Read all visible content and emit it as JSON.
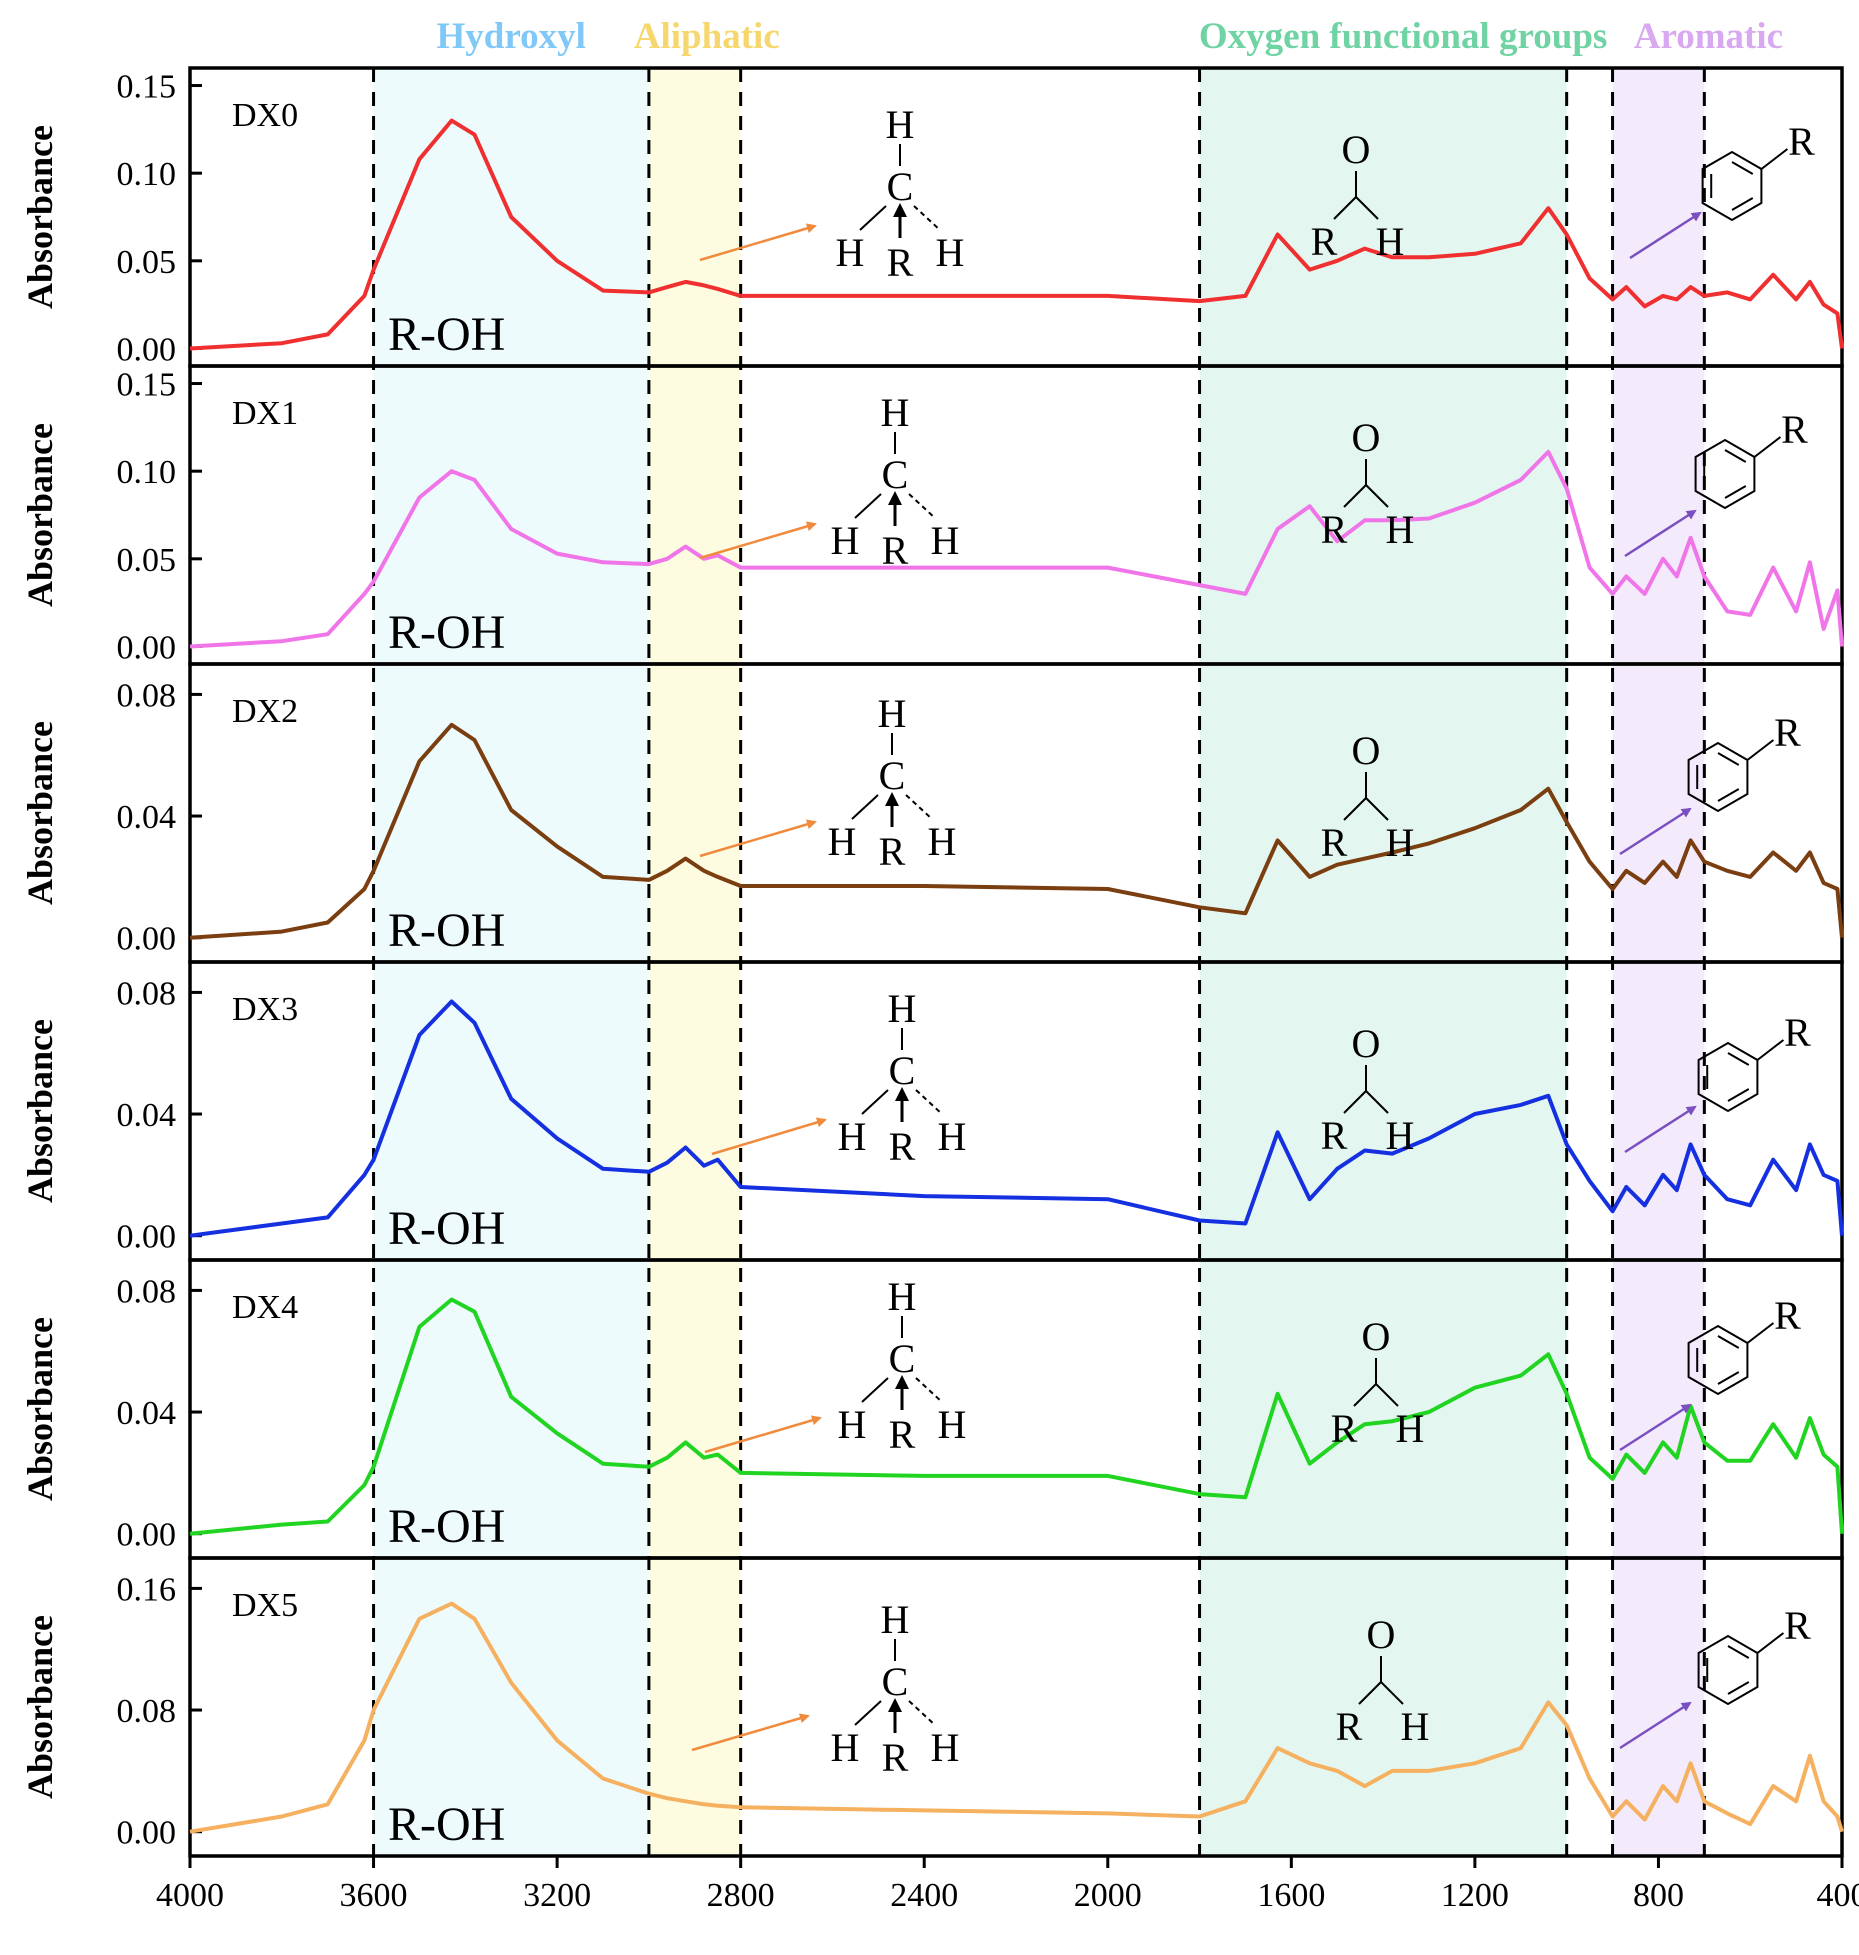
{
  "chart_data": {
    "type": "line",
    "xlim": [
      4000,
      400
    ],
    "x_ticks": [
      "4000",
      "3600",
      "3200",
      "2800",
      "2400",
      "2000",
      "1600",
      "1200",
      "800",
      "400"
    ],
    "x_tick_values": [
      4000,
      3600,
      3200,
      2800,
      2400,
      2000,
      1600,
      1200,
      800,
      400
    ],
    "ylabel": "Absorbance",
    "band_labels": [
      {
        "text": "Hydroxyl",
        "color": "#7fc8f8"
      },
      {
        "text": "Aliphatic",
        "color": "#f5d76e"
      },
      {
        "text": "Oxygen functional groups",
        "color": "#6fd3a3"
      },
      {
        "text": "Aromatic",
        "color": "#d8a8f0"
      }
    ],
    "bands": [
      {
        "from": 3600,
        "to": 3000,
        "color": "#eefbfd"
      },
      {
        "from": 3000,
        "to": 2800,
        "color": "#fdfbe0"
      },
      {
        "from": 1800,
        "to": 1000,
        "color": "#e3f7f0"
      },
      {
        "from": 900,
        "to": 700,
        "color": "#f3eafc"
      }
    ],
    "dashed_lines": [
      3600,
      3000,
      2800,
      1800,
      1000,
      900,
      700
    ],
    "annotation_oh": "R-OH",
    "ch3_atoms": {
      "top": "H",
      "center": "C",
      "left": "H",
      "right": "H",
      "bottom": "R"
    },
    "aldehyde_atoms": {
      "top": "O",
      "left": "R",
      "right": "H"
    },
    "aromatic_substituent": "R",
    "colors": {
      "arrow_aliphatic": "#f08a3c",
      "arrow_aromatic": "#7a4fc0"
    },
    "x": [
      4000,
      3800,
      3700,
      3620,
      3600,
      3500,
      3430,
      3380,
      3300,
      3200,
      3100,
      3000,
      2960,
      2920,
      2880,
      2850,
      2800,
      2400,
      2000,
      1800,
      1700,
      1630,
      1560,
      1500,
      1440,
      1380,
      1300,
      1200,
      1100,
      1040,
      1000,
      950,
      900,
      870,
      830,
      790,
      760,
      730,
      700,
      650,
      600,
      550,
      500,
      470,
      440,
      410,
      400
    ],
    "panels": [
      {
        "name": "DX0",
        "color": "#f03030",
        "ylim": [
          -0.01,
          0.16
        ],
        "yticks": [
          "0.15",
          "0.10",
          "0.05",
          "0.00"
        ],
        "ytick_values": [
          0.15,
          0.1,
          0.05,
          0.0
        ],
        "values": [
          0.0,
          0.003,
          0.008,
          0.03,
          0.045,
          0.108,
          0.13,
          0.122,
          0.075,
          0.05,
          0.033,
          0.032,
          0.035,
          0.038,
          0.036,
          0.034,
          0.03,
          0.03,
          0.03,
          0.027,
          0.03,
          0.065,
          0.045,
          0.05,
          0.057,
          0.052,
          0.052,
          0.054,
          0.06,
          0.08,
          0.065,
          0.04,
          0.028,
          0.035,
          0.024,
          0.03,
          0.028,
          0.035,
          0.03,
          0.032,
          0.028,
          0.042,
          0.028,
          0.038,
          0.025,
          0.02,
          0.0
        ]
      },
      {
        "name": "DX1",
        "color": "#f075e8",
        "ylim": [
          -0.01,
          0.16
        ],
        "yticks": [
          "0.15",
          "0.10",
          "0.05",
          "0.00"
        ],
        "ytick_values": [
          0.15,
          0.1,
          0.05,
          0.0
        ],
        "values": [
          0.0,
          0.003,
          0.007,
          0.03,
          0.037,
          0.085,
          0.1,
          0.095,
          0.067,
          0.053,
          0.048,
          0.047,
          0.05,
          0.057,
          0.05,
          0.052,
          0.045,
          0.045,
          0.045,
          0.035,
          0.03,
          0.067,
          0.08,
          0.06,
          0.072,
          0.072,
          0.073,
          0.082,
          0.095,
          0.111,
          0.09,
          0.045,
          0.03,
          0.04,
          0.03,
          0.05,
          0.04,
          0.062,
          0.04,
          0.02,
          0.018,
          0.045,
          0.02,
          0.048,
          0.01,
          0.032,
          0.0
        ]
      },
      {
        "name": "DX2",
        "color": "#7a3e10",
        "ylim": [
          -0.008,
          0.09
        ],
        "yticks": [
          "0.08",
          "0.04",
          "0.00"
        ],
        "ytick_values": [
          0.08,
          0.04,
          0.0
        ],
        "values": [
          0.0,
          0.002,
          0.005,
          0.016,
          0.022,
          0.058,
          0.07,
          0.065,
          0.042,
          0.03,
          0.02,
          0.019,
          0.022,
          0.026,
          0.022,
          0.02,
          0.017,
          0.017,
          0.016,
          0.01,
          0.008,
          0.032,
          0.02,
          0.024,
          0.026,
          0.028,
          0.031,
          0.036,
          0.042,
          0.049,
          0.038,
          0.025,
          0.016,
          0.022,
          0.018,
          0.025,
          0.02,
          0.032,
          0.025,
          0.022,
          0.02,
          0.028,
          0.022,
          0.028,
          0.018,
          0.016,
          0.0
        ]
      },
      {
        "name": "DX3",
        "color": "#1430e0",
        "ylim": [
          -0.008,
          0.09
        ],
        "yticks": [
          "0.08",
          "0.04",
          "0.00"
        ],
        "ytick_values": [
          0.08,
          0.04,
          0.0
        ],
        "values": [
          0.0,
          0.004,
          0.006,
          0.02,
          0.025,
          0.066,
          0.077,
          0.07,
          0.045,
          0.032,
          0.022,
          0.021,
          0.024,
          0.029,
          0.023,
          0.025,
          0.016,
          0.013,
          0.012,
          0.005,
          0.004,
          0.034,
          0.012,
          0.022,
          0.028,
          0.027,
          0.032,
          0.04,
          0.043,
          0.046,
          0.03,
          0.018,
          0.008,
          0.016,
          0.01,
          0.02,
          0.015,
          0.03,
          0.02,
          0.012,
          0.01,
          0.025,
          0.015,
          0.03,
          0.02,
          0.018,
          0.0
        ]
      },
      {
        "name": "DX4",
        "color": "#22d422",
        "ylim": [
          -0.008,
          0.09
        ],
        "yticks": [
          "0.08",
          "0.04",
          "0.00"
        ],
        "ytick_values": [
          0.08,
          0.04,
          0.0
        ],
        "values": [
          0.0,
          0.003,
          0.004,
          0.016,
          0.022,
          0.068,
          0.077,
          0.073,
          0.045,
          0.033,
          0.023,
          0.022,
          0.025,
          0.03,
          0.025,
          0.026,
          0.02,
          0.019,
          0.019,
          0.013,
          0.012,
          0.046,
          0.023,
          0.03,
          0.036,
          0.037,
          0.04,
          0.048,
          0.052,
          0.059,
          0.046,
          0.025,
          0.018,
          0.026,
          0.02,
          0.03,
          0.025,
          0.042,
          0.03,
          0.024,
          0.024,
          0.036,
          0.025,
          0.038,
          0.026,
          0.022,
          0.0
        ]
      },
      {
        "name": "DX5",
        "color": "#f5b060",
        "ylim": [
          -0.016,
          0.18
        ],
        "yticks": [
          "0.16",
          "0.08",
          "0.00"
        ],
        "ytick_values": [
          0.16,
          0.08,
          0.0
        ],
        "values": [
          0.0,
          0.01,
          0.018,
          0.06,
          0.08,
          0.14,
          0.15,
          0.14,
          0.098,
          0.06,
          0.035,
          0.025,
          0.022,
          0.02,
          0.018,
          0.017,
          0.016,
          0.014,
          0.012,
          0.01,
          0.02,
          0.055,
          0.045,
          0.04,
          0.03,
          0.04,
          0.04,
          0.045,
          0.055,
          0.085,
          0.07,
          0.035,
          0.01,
          0.02,
          0.008,
          0.03,
          0.02,
          0.045,
          0.02,
          0.012,
          0.005,
          0.03,
          0.02,
          0.05,
          0.02,
          0.01,
          0.0
        ]
      }
    ]
  }
}
